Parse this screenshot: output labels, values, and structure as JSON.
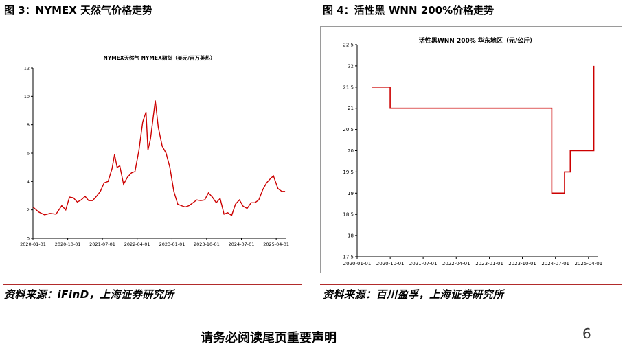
{
  "left": {
    "figure_title": "图 3：NYMEX 天然气价格走势",
    "source": "资料来源：iFinD，上海证券研究所"
  },
  "right": {
    "figure_title": "图 4：活性黑 WNN 200%价格走势",
    "source": "资料来源：百川盈孚，上海证券研究所"
  },
  "footer": {
    "disclaimer": "请务必阅读尾页重要声明",
    "page_number": "6"
  },
  "colors": {
    "line": "#cc0000",
    "rule": "#b22b2b",
    "axis": "#000000"
  },
  "chart_data": [
    {
      "type": "line",
      "title": "NYMEX天然气 NYMEX期货（美元/百万英热）",
      "xlabel": "",
      "ylabel": "",
      "x_ticks": [
        "2020-01-01",
        "2020-10-01",
        "2021-07-01",
        "2022-04-01",
        "2023-01-01",
        "2023-10-01",
        "2024-07-01",
        "2025-04-01"
      ],
      "x_range": [
        "2020-01-01",
        "2025-06-15"
      ],
      "y_ticks": [
        0,
        2,
        4,
        6,
        8,
        10,
        12
      ],
      "ylim": [
        0,
        12
      ],
      "grid": false,
      "series": [
        {
          "x": [
            "2020-01-01",
            "2020-02-15",
            "2020-04-01",
            "2020-05-15",
            "2020-07-01",
            "2020-08-15",
            "2020-09-15",
            "2020-10-15",
            "2020-11-15",
            "2020-12-15",
            "2021-01-15",
            "2021-02-15",
            "2021-03-15",
            "2021-04-15",
            "2021-05-15",
            "2021-06-15",
            "2021-07-15",
            "2021-08-15",
            "2021-09-15",
            "2021-10-05",
            "2021-10-25",
            "2021-11-15",
            "2021-12-15",
            "2022-01-15",
            "2022-02-15",
            "2022-03-15",
            "2022-04-15",
            "2022-05-15",
            "2022-06-10",
            "2022-06-25",
            "2022-07-15",
            "2022-08-22",
            "2022-09-15",
            "2022-10-15",
            "2022-11-15",
            "2022-12-15",
            "2023-01-15",
            "2023-02-15",
            "2023-03-15",
            "2023-04-15",
            "2023-05-15",
            "2023-06-15",
            "2023-07-15",
            "2023-08-15",
            "2023-09-15",
            "2023-10-15",
            "2023-11-15",
            "2023-12-15",
            "2024-01-15",
            "2024-02-15",
            "2024-03-15",
            "2024-04-15",
            "2024-05-15",
            "2024-06-15",
            "2024-07-15",
            "2024-08-15",
            "2024-09-15",
            "2024-10-15",
            "2024-11-15",
            "2024-12-15",
            "2025-01-15",
            "2025-02-15",
            "2025-03-10",
            "2025-04-15",
            "2025-05-15",
            "2025-06-10"
          ],
          "values": [
            2.2,
            1.85,
            1.65,
            1.75,
            1.7,
            2.3,
            2.0,
            2.9,
            2.85,
            2.55,
            2.7,
            2.95,
            2.65,
            2.65,
            2.95,
            3.3,
            3.9,
            4.0,
            4.9,
            5.9,
            5.0,
            5.1,
            3.8,
            4.3,
            4.6,
            4.7,
            6.2,
            8.2,
            8.9,
            6.2,
            7.0,
            9.7,
            7.8,
            6.5,
            6.0,
            5.0,
            3.3,
            2.4,
            2.3,
            2.2,
            2.3,
            2.5,
            2.7,
            2.65,
            2.7,
            3.2,
            2.9,
            2.5,
            2.8,
            1.7,
            1.8,
            1.6,
            2.4,
            2.7,
            2.25,
            2.1,
            2.5,
            2.5,
            2.7,
            3.4,
            3.9,
            4.2,
            4.4,
            3.5,
            3.3,
            3.3
          ]
        }
      ]
    },
    {
      "type": "line",
      "title": "活性黑WNN 200% 华东地区（元/公斤）",
      "xlabel": "",
      "ylabel": "",
      "x_ticks": [
        "2020-01-01",
        "2020-10-01",
        "2021-07-01",
        "2022-04-01",
        "2023-01-01",
        "2023-10-01",
        "2024-07-01",
        "2025-04-01"
      ],
      "x_range": [
        "2020-01-01",
        "2025-06-15"
      ],
      "y_ticks": [
        17.5,
        18,
        18.5,
        19,
        19.5,
        20,
        20.5,
        21,
        21.5,
        22,
        22.5
      ],
      "ylim": [
        17.5,
        22.5
      ],
      "grid": false,
      "series": [
        {
          "x": [
            "2020-05-01",
            "2020-10-01",
            "2020-10-01",
            "2024-06-01",
            "2024-06-01",
            "2024-09-15",
            "2024-09-15",
            "2024-11-01",
            "2024-11-01",
            "2025-05-15",
            "2025-05-15"
          ],
          "values": [
            21.5,
            21.5,
            21.0,
            21.0,
            19.0,
            19.0,
            19.5,
            19.5,
            20.0,
            20.0,
            22.0
          ]
        }
      ]
    }
  ]
}
